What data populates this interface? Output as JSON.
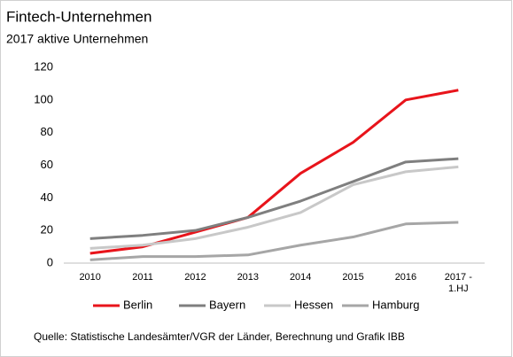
{
  "chart_data": {
    "type": "line",
    "title": "Fintech-Unternehmen",
    "subtitle": "2017 aktive Unternehmen",
    "categories": [
      "2010",
      "2011",
      "2012",
      "2013",
      "2014",
      "2015",
      "2016",
      "2017 - 1.HJ"
    ],
    "series": [
      {
        "name": "Berlin",
        "color": "#e8141b",
        "values": [
          6,
          10,
          19,
          28,
          55,
          74,
          100,
          106
        ]
      },
      {
        "name": "Bayern",
        "color": "#7f7f7f",
        "values": [
          15,
          17,
          20,
          28,
          38,
          50,
          62,
          64
        ]
      },
      {
        "name": "Hessen",
        "color": "#c8c8c8",
        "values": [
          9,
          11,
          15,
          22,
          31,
          48,
          56,
          59
        ]
      },
      {
        "name": "Hamburg",
        "color": "#a6a6a6",
        "values": [
          2,
          4,
          4,
          5,
          11,
          16,
          24,
          25
        ]
      }
    ],
    "ylim": [
      0,
      120
    ],
    "yticks": [
      0,
      20,
      40,
      60,
      80,
      100,
      120
    ],
    "grid": false,
    "legend": "bottom",
    "source": "Quelle: Statistische Landesämter/VGR der Länder, Berechnung und Grafik IBB"
  }
}
